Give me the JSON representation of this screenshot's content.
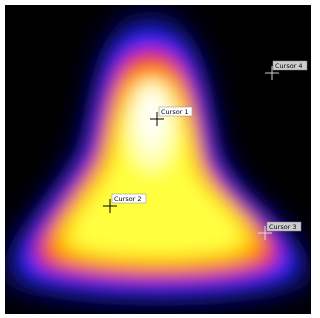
{
  "cursors": [
    {
      "label": "Cursor 1"
    },
    {
      "label": "Cursor 2"
    },
    {
      "label": "Cursor 3"
    },
    {
      "label": "Cursor 4"
    }
  ]
}
